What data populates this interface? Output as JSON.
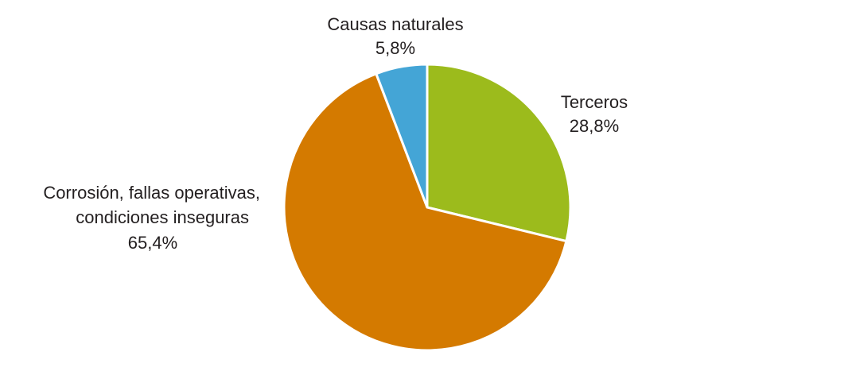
{
  "chart_data": {
    "type": "pie",
    "slices": [
      {
        "label": [
          "Terceros"
        ],
        "value_label": "28,8%",
        "value": 28.8,
        "color": "#9cbb1c"
      },
      {
        "label": [
          "Corrosión, fallas operativas,",
          "condiciones inseguras"
        ],
        "value_label": "65,4%",
        "value": 65.4,
        "color": "#d47a00"
      },
      {
        "label": [
          "Causas naturales"
        ],
        "value_label": "5,8%",
        "value": 5.8,
        "color": "#44a5d6"
      }
    ],
    "start_angle": "12 o'clock",
    "direction": "clockwise",
    "legend": "none"
  }
}
